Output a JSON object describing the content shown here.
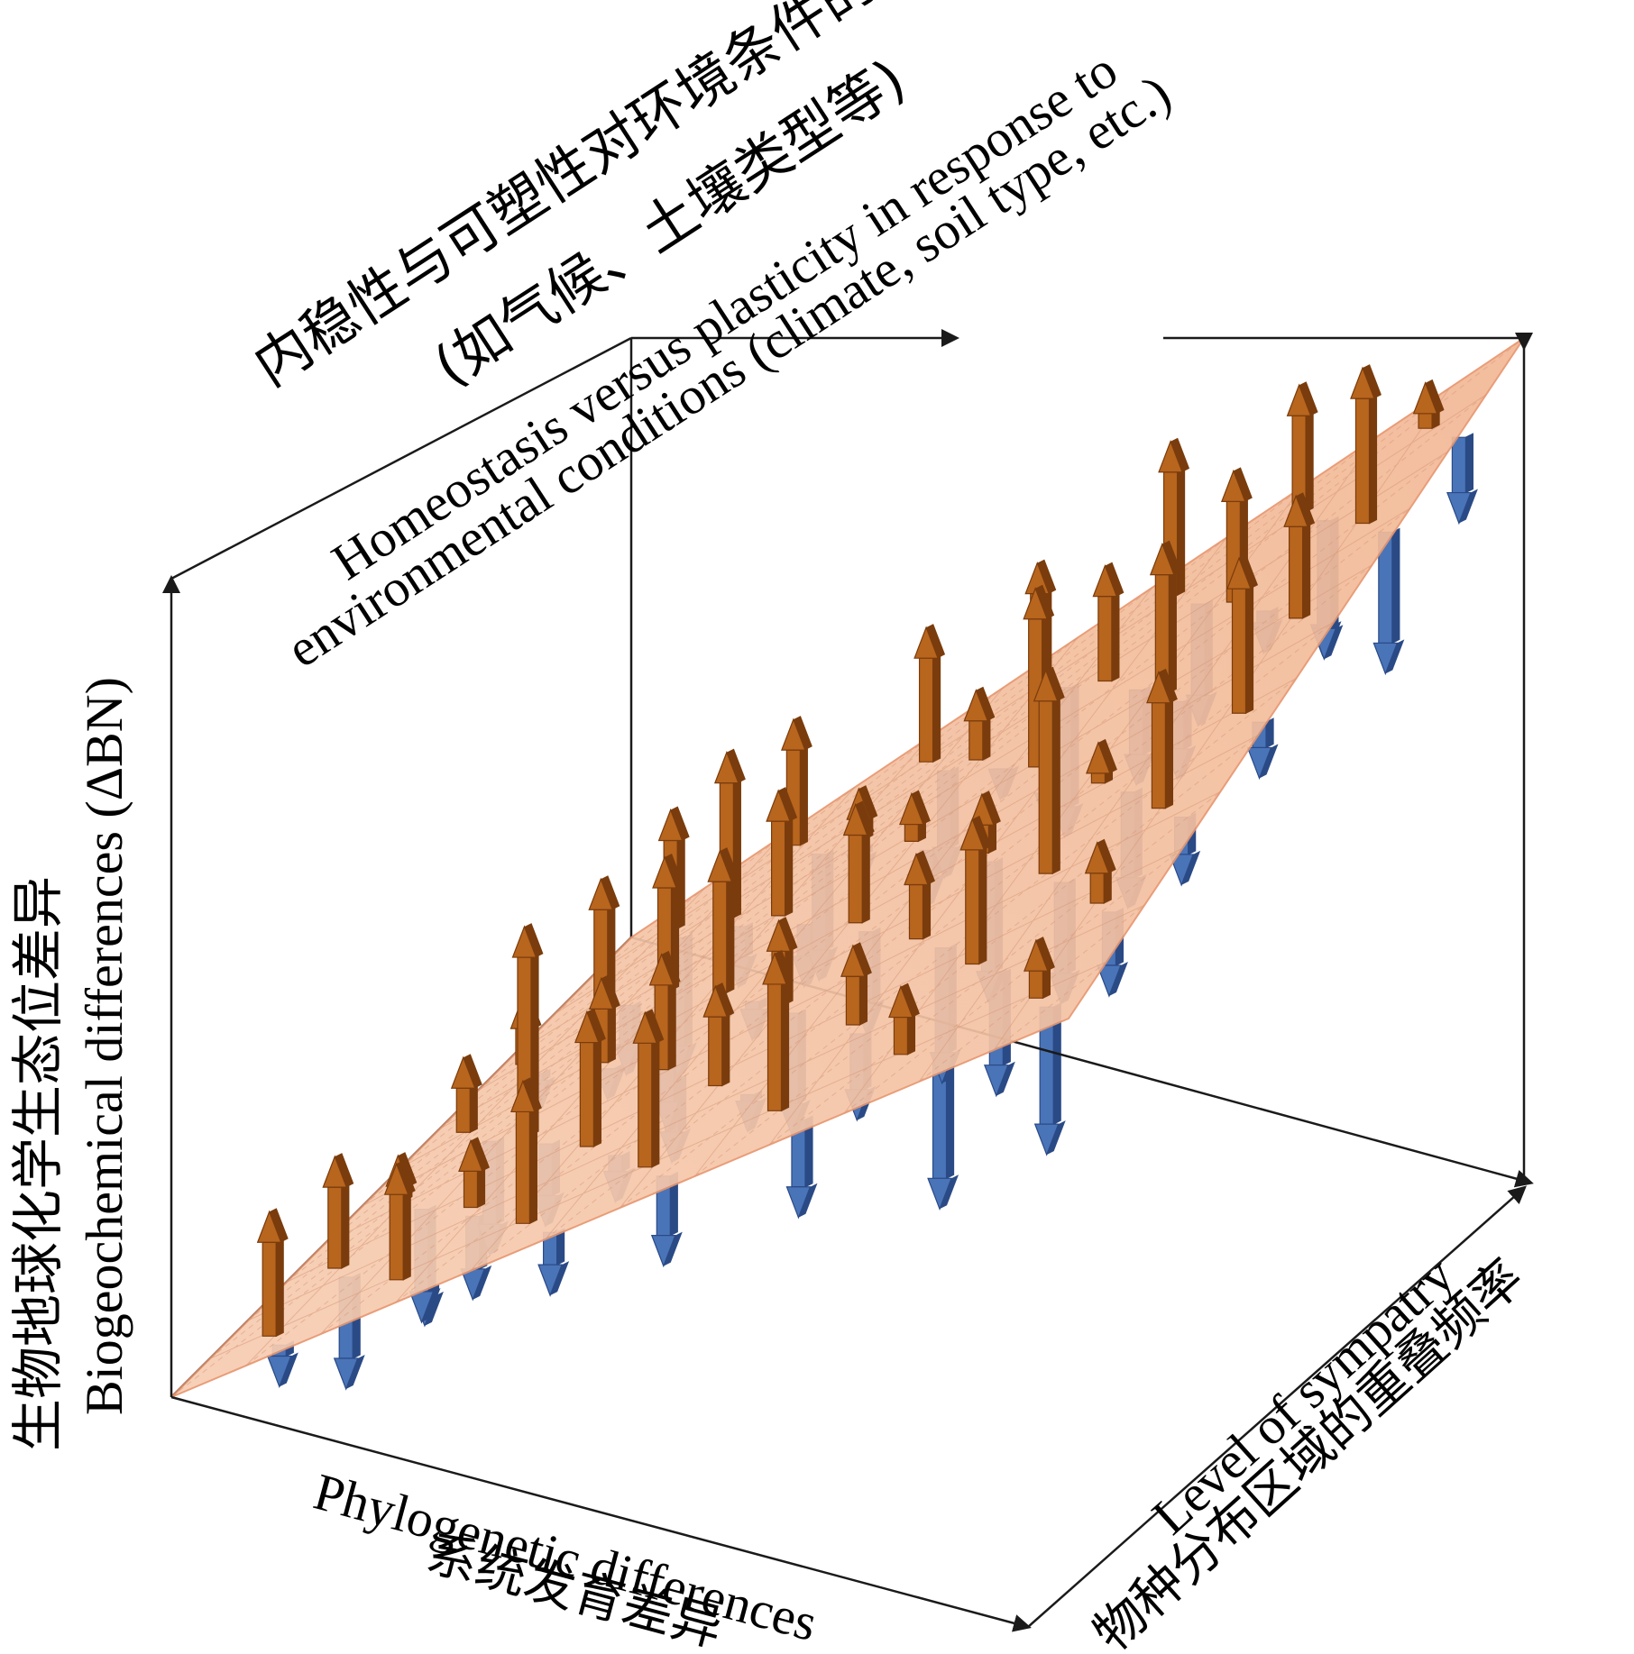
{
  "colors": {
    "axis": "#1a1a1a",
    "plane_fill": "#f5c2a3",
    "plane_stroke": "#e8956d",
    "grid": "#d8a080",
    "up_arrow_front": "#b8651e",
    "up_arrow_side": "#7a3c0c",
    "up_arrow_light": "#e59a55",
    "down_arrow_front": "#4a74b8",
    "down_arrow_side": "#2a4a86"
  },
  "labels": {
    "top_title_zh_line1": "内稳性与可塑性对环境条件的响应",
    "top_title_zh_line2": "(如气候、土壤类型等)",
    "top_title_en_line1": "Homeostasis versus plasticity in response to",
    "top_title_en_line2": "environmental conditions (climate, soil type, etc.)",
    "y_axis_zh": "生物地球化学生态位差异",
    "y_axis_en": "Biogeochemical differences (ΔBN)",
    "x_axis_en": "Phylogenetic differences",
    "x_axis_zh": "系统发育差异",
    "z_axis_en": "Level of sympatry",
    "z_axis_zh": "物种分布区域的重叠频率"
  },
  "icons": {
    "up": "orange-up-arrow-icon",
    "down": "blue-down-arrow-icon"
  }
}
